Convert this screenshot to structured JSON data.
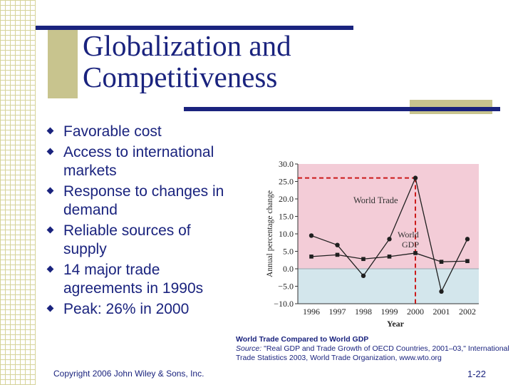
{
  "slide": {
    "title_line1": "Globalization and",
    "title_line2": "Competitiveness",
    "bullets": [
      [
        "Favorable cost"
      ],
      [
        "Access to international",
        "markets"
      ],
      [
        "Response to changes in",
        "demand"
      ],
      [
        "Reliable sources of",
        "supply"
      ],
      [
        "14 major trade",
        "agreements in 1990s"
      ],
      [
        "Peak: 26% in 2000"
      ]
    ],
    "caption_title": "World Trade Compared to World GDP",
    "caption_source_label": "Source:",
    "caption_source_text": " \"Real GDP and Trade Growth of OECD Countries, 2001–03,\" International Trade Statistics 2003, World Trade Organization, www.wto.org",
    "copyright": "Copyright 2006 John Wiley & Sons, Inc.",
    "page_number": "1-22",
    "colors": {
      "title_blue": "#1a237e",
      "pink_region": "#f3ccd7",
      "blue_region": "#d3e6ec",
      "peak_line": "#cc1a1a"
    }
  },
  "chart_data": {
    "type": "line",
    "x": [
      "1996",
      "1997",
      "1998",
      "1999",
      "2000",
      "2001",
      "2002"
    ],
    "series": [
      {
        "name": "World Trade",
        "values": [
          9.5,
          6.8,
          -2.0,
          8.5,
          26.0,
          -6.5,
          8.5
        ]
      },
      {
        "name": "World GDP",
        "values": [
          3.5,
          4.0,
          2.8,
          3.5,
          4.5,
          2.0,
          2.2
        ]
      }
    ],
    "xlabel": "Year",
    "ylabel": "Annual percentage change",
    "yticks": [
      "30.0",
      "25.0",
      "20.0",
      "15.0",
      "10.0",
      "5.0",
      "0.0",
      "−5.0",
      "−10.0"
    ],
    "ytick_values": [
      30,
      25,
      20,
      15,
      10,
      5,
      0,
      -5,
      -10
    ],
    "ylim": [
      -10,
      30
    ],
    "peak_annotation": {
      "x": "2000",
      "value": 26.0
    },
    "grid": false,
    "legend": "inline labels"
  }
}
